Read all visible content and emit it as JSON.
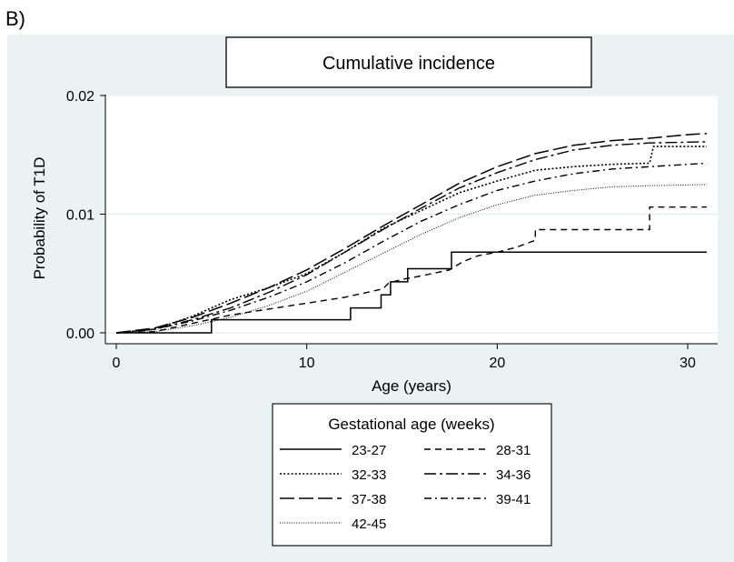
{
  "panel_label": "B)",
  "chart_data": {
    "type": "line",
    "subtype": "step",
    "title": "Cumulative incidence",
    "xlabel": "Age (years)",
    "ylabel": "Probability of T1D",
    "xlim": [
      0,
      31
    ],
    "ylim": [
      0,
      0.02
    ],
    "xticks": [
      0,
      10,
      20,
      30
    ],
    "xtick_labels": [
      "0",
      "10",
      "20",
      "30"
    ],
    "yticks": [
      0,
      0.01,
      0.02
    ],
    "ytick_labels": [
      "0.00",
      "0.01",
      "0.02"
    ],
    "grid": "horizontal",
    "legend_title": "Gestational age (weeks)",
    "legend_position": "bottom",
    "series": [
      {
        "name": "23-27",
        "line_style": "solid",
        "x": [
          0,
          5,
          5,
          12.3,
          12.3,
          13.9,
          13.9,
          14.4,
          14.4,
          15.3,
          15.3,
          17.6,
          17.6,
          31
        ],
        "y": [
          0,
          0,
          0.0011,
          0.0011,
          0.0021,
          0.0021,
          0.0032,
          0.0032,
          0.0043,
          0.0043,
          0.0054,
          0.0054,
          0.0068,
          0.0068
        ]
      },
      {
        "name": "28-31",
        "line_style": "dash",
        "x": [
          0,
          2,
          4,
          6,
          8,
          10,
          12,
          14,
          14.3,
          15,
          16,
          17.5,
          18.2,
          19,
          20,
          21,
          22,
          22,
          26,
          28,
          28,
          31
        ],
        "y": [
          0,
          0.0001,
          0.0008,
          0.0015,
          0.002,
          0.0025,
          0.003,
          0.0037,
          0.0042,
          0.0045,
          0.0048,
          0.0053,
          0.006,
          0.0065,
          0.0068,
          0.0072,
          0.0078,
          0.0087,
          0.0087,
          0.0087,
          0.0106,
          0.0106
        ]
      },
      {
        "name": "32-33",
        "line_style": "dot",
        "x": [
          0,
          2,
          4,
          6,
          8,
          10,
          12,
          14,
          16,
          18,
          20,
          22,
          24,
          26,
          28,
          28.2,
          31
        ],
        "y": [
          0,
          0.0003,
          0.0014,
          0.0028,
          0.0038,
          0.005,
          0.0068,
          0.0088,
          0.0103,
          0.0118,
          0.0128,
          0.0137,
          0.014,
          0.0142,
          0.0143,
          0.0157,
          0.0157
        ]
      },
      {
        "name": "34-36",
        "line_style": "dash-dot",
        "x": [
          0,
          2,
          4,
          6,
          8,
          10,
          12,
          14,
          16,
          18,
          20,
          22,
          24,
          26,
          28,
          31
        ],
        "y": [
          0,
          0.0003,
          0.0011,
          0.0021,
          0.0034,
          0.0049,
          0.0068,
          0.0087,
          0.0105,
          0.0122,
          0.0135,
          0.0146,
          0.0154,
          0.0158,
          0.016,
          0.0161
        ]
      },
      {
        "name": "37-38",
        "line_style": "long-dash",
        "x": [
          0,
          2,
          4,
          6,
          8,
          10,
          12,
          14,
          16,
          18,
          20,
          22,
          24,
          26,
          28,
          30,
          31
        ],
        "y": [
          0,
          0.0004,
          0.0013,
          0.0025,
          0.0038,
          0.0053,
          0.0071,
          0.009,
          0.0108,
          0.0126,
          0.014,
          0.0151,
          0.0158,
          0.0162,
          0.0164,
          0.0167,
          0.0168
        ]
      },
      {
        "name": "39-41",
        "line_style": "dash-dot-2",
        "x": [
          0,
          2,
          4,
          6,
          8,
          10,
          12,
          14,
          16,
          18,
          20,
          22,
          24,
          26,
          28,
          31
        ],
        "y": [
          0,
          0.0003,
          0.001,
          0.0019,
          0.003,
          0.0043,
          0.0059,
          0.0077,
          0.0094,
          0.0108,
          0.012,
          0.0128,
          0.0134,
          0.0138,
          0.014,
          0.0143
        ]
      },
      {
        "name": "42-45",
        "line_style": "fine-dot",
        "x": [
          0,
          2,
          4,
          6,
          8,
          10,
          12,
          14,
          16,
          18,
          20,
          22,
          24,
          26,
          28,
          31
        ],
        "y": [
          0,
          0.0001,
          0.0006,
          0.0013,
          0.0023,
          0.0035,
          0.0051,
          0.0067,
          0.0083,
          0.0097,
          0.0108,
          0.0116,
          0.012,
          0.0123,
          0.0124,
          0.0125
        ]
      }
    ]
  }
}
